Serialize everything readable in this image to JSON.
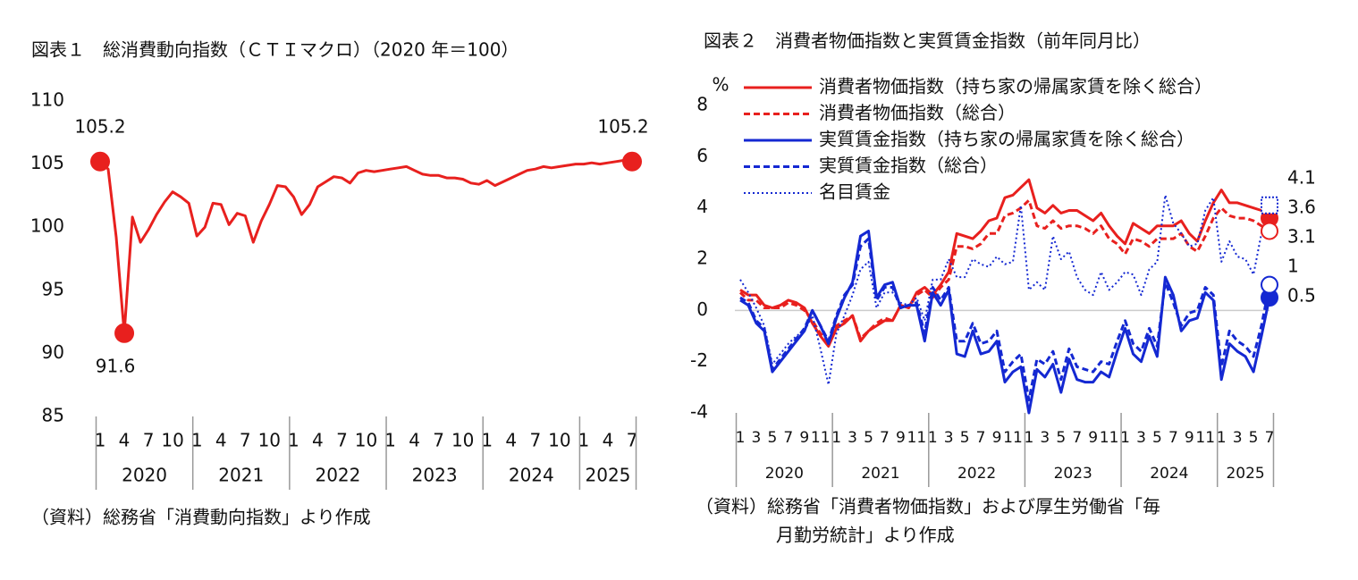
{
  "chart_data": [
    {
      "type": "line",
      "title": "図表１　総消費動向指数（ＣＴＩマクロ）（2020 年＝100）",
      "source": [
        "（資料）総務省「消費動向指数」より作成"
      ],
      "categories": [
        "1",
        null,
        null,
        "4",
        null,
        null,
        "7",
        null,
        null,
        "10",
        null,
        null,
        "1",
        null,
        null,
        "4",
        null,
        null,
        "7",
        null,
        null,
        "10",
        null,
        null,
        "1",
        null,
        null,
        "4",
        null,
        null,
        "7",
        null,
        null,
        "10",
        null,
        null,
        "1",
        null,
        null,
        "4",
        null,
        null,
        "7",
        null,
        null,
        "10",
        null,
        null,
        "1",
        null,
        null,
        "4",
        null,
        null,
        "7",
        null,
        null,
        "10",
        null,
        null,
        "1",
        null,
        null,
        "4",
        null,
        null,
        "7"
      ],
      "groups": [
        "2020",
        "2021",
        "2022",
        "2023",
        "2024",
        "2025"
      ],
      "series": [
        {
          "name": "総消費動向指数",
          "color": "#e8201e",
          "dash": "solid",
          "values": [
            105.2,
            104.6,
            99.2,
            91.6,
            100.8,
            98.8,
            99.8,
            101.0,
            102.0,
            102.8,
            102.4,
            101.9,
            99.3,
            100.0,
            101.9,
            101.8,
            100.2,
            101.1,
            100.9,
            98.8,
            100.5,
            101.8,
            103.3,
            103.2,
            102.4,
            101.0,
            101.8,
            103.2,
            103.6,
            104.0,
            103.9,
            103.5,
            104.3,
            104.5,
            104.4,
            104.5,
            104.6,
            104.7,
            104.8,
            104.5,
            104.2,
            104.1,
            104.1,
            103.9,
            103.9,
            103.8,
            103.5,
            103.4,
            103.7,
            103.3,
            103.6,
            103.9,
            104.2,
            104.5,
            104.6,
            104.8,
            104.7,
            104.8,
            104.9,
            105.0,
            105.0,
            105.1,
            105.0,
            105.1,
            105.2,
            105.3,
            105.2
          ]
        }
      ],
      "labeled_points": [
        0,
        3,
        66
      ],
      "ylim": [
        85,
        110
      ],
      "yticks": [
        85,
        90,
        95,
        100,
        105,
        110
      ],
      "grid": false,
      "legend": false
    },
    {
      "type": "line",
      "title": "図表２　消費者物価指数と実質賃金指数（前年同月比）",
      "source": [
        "（資料）総務省「消費者物価指数」および厚生労働省「毎",
        "月勤労統計」より作成"
      ],
      "ylabel": "%",
      "categories": [
        "1",
        null,
        "3",
        null,
        "5",
        null,
        "7",
        null,
        "9",
        null,
        "11",
        null,
        "1",
        null,
        "3",
        null,
        "5",
        null,
        "7",
        null,
        "9",
        null,
        "11",
        null,
        "1",
        null,
        "3",
        null,
        "5",
        null,
        "7",
        null,
        "9",
        null,
        "11",
        null,
        "1",
        null,
        "3",
        null,
        "5",
        null,
        "7",
        null,
        "9",
        null,
        "11",
        null,
        "1",
        null,
        "3",
        null,
        "5",
        null,
        "7",
        null,
        "9",
        null,
        "11",
        null,
        "1",
        null,
        "3",
        null,
        "5",
        null,
        "7"
      ],
      "groups": [
        "2020",
        "2021",
        "2022",
        "2023",
        "2024",
        "2025"
      ],
      "series": [
        {
          "name": "消費者物価指数（持ち家の帰属家賃を除く総合）",
          "color": "#e8201e",
          "dash": "solid",
          "end_marker": "filled",
          "values": [
            0.8,
            0.6,
            0.6,
            0.2,
            0.1,
            0.2,
            0.4,
            0.3,
            0.1,
            -0.5,
            -1.0,
            -1.4,
            -0.7,
            -0.5,
            -0.2,
            -1.2,
            -0.8,
            -0.6,
            -0.4,
            -0.4,
            0.2,
            0.1,
            0.7,
            0.9,
            0.6,
            1.0,
            1.5,
            3.0,
            2.9,
            2.8,
            3.1,
            3.5,
            3.6,
            4.4,
            4.5,
            4.8,
            5.1,
            4.0,
            3.8,
            4.1,
            3.8,
            3.9,
            3.9,
            3.7,
            3.5,
            3.8,
            3.3,
            2.9,
            2.6,
            3.4,
            3.2,
            3.0,
            3.3,
            3.3,
            3.3,
            3.5,
            3.0,
            2.7,
            3.5,
            4.2,
            4.7,
            4.2,
            4.2,
            4.1,
            4.0,
            3.9,
            3.6
          ]
        },
        {
          "name": "消費者物価指数（総合）",
          "color": "#e8201e",
          "dash": "dash",
          "end_marker": "hollow",
          "values": [
            0.7,
            0.4,
            0.4,
            0.1,
            0.1,
            0.1,
            0.3,
            0.2,
            0.0,
            -0.4,
            -0.9,
            -1.2,
            -0.6,
            -0.4,
            -0.2,
            -1.1,
            -0.8,
            -0.5,
            -0.3,
            -0.4,
            0.2,
            0.1,
            0.6,
            0.8,
            0.5,
            0.9,
            1.2,
            2.5,
            2.5,
            2.4,
            2.6,
            3.0,
            3.0,
            3.7,
            3.8,
            4.0,
            4.3,
            3.3,
            3.2,
            3.5,
            3.2,
            3.3,
            3.3,
            3.2,
            3.0,
            3.3,
            2.8,
            2.6,
            2.2,
            2.8,
            2.7,
            2.5,
            2.8,
            2.8,
            2.8,
            3.0,
            2.5,
            2.3,
            2.9,
            3.6,
            4.0,
            3.7,
            3.6,
            3.6,
            3.5,
            3.3,
            3.1
          ]
        },
        {
          "name": "実質賃金指数（持ち家の帰属家賃を除く総合）",
          "color": "#1428d2",
          "dash": "solid",
          "end_marker": "filled",
          "values": [
            0.4,
            0.2,
            -0.5,
            -0.8,
            -2.4,
            -2.0,
            -1.6,
            -1.2,
            -0.8,
            0.0,
            -0.6,
            -1.3,
            -0.3,
            0.5,
            1.1,
            2.9,
            3.1,
            0.5,
            1.0,
            1.1,
            0.1,
            0.2,
            0.2,
            -1.2,
            0.7,
            0.2,
            0.8,
            -1.7,
            -1.8,
            -0.8,
            -1.7,
            -1.6,
            -1.2,
            -2.8,
            -2.4,
            -2.2,
            -4.0,
            -2.3,
            -2.6,
            -2.1,
            -3.2,
            -1.9,
            -2.7,
            -2.8,
            -2.8,
            -2.4,
            -2.6,
            -1.6,
            -0.7,
            -1.7,
            -2.0,
            -1.0,
            -1.8,
            1.3,
            0.6,
            -0.8,
            -0.4,
            -0.3,
            0.7,
            0.4,
            -2.7,
            -1.3,
            -1.6,
            -1.8,
            -2.4,
            -1.0,
            0.5
          ]
        },
        {
          "name": "実質賃金指数（総合）",
          "color": "#1428d2",
          "dash": "dash",
          "end_marker": "hollow",
          "values": [
            0.5,
            0.3,
            -0.4,
            -0.7,
            -2.3,
            -1.9,
            -1.5,
            -1.1,
            -0.7,
            0.0,
            -0.6,
            -1.2,
            -0.2,
            0.6,
            1.0,
            2.5,
            2.8,
            0.4,
            0.9,
            0.9,
            0.1,
            0.2,
            0.3,
            -0.9,
            0.9,
            0.4,
            0.9,
            -1.2,
            -1.2,
            -0.5,
            -1.3,
            -1.2,
            -0.8,
            -2.4,
            -2.0,
            -1.7,
            -3.5,
            -1.9,
            -2.1,
            -1.6,
            -2.7,
            -1.5,
            -2.2,
            -2.3,
            -2.4,
            -2.0,
            -2.1,
            -1.2,
            -0.4,
            -1.3,
            -1.6,
            -0.7,
            -1.4,
            1.1,
            0.3,
            -0.6,
            -0.1,
            0.0,
            0.9,
            0.6,
            -2.2,
            -0.8,
            -1.2,
            -1.4,
            -1.8,
            -0.6,
            1.0
          ]
        },
        {
          "name": "名目賃金",
          "color": "#1428d2",
          "dash": "dot",
          "end_marker": "square",
          "values": [
            1.2,
            0.7,
            0.1,
            -0.6,
            -2.1,
            -1.7,
            -1.3,
            -1.0,
            -0.8,
            -0.2,
            -1.5,
            -2.9,
            -0.9,
            -0.2,
            0.6,
            1.6,
            1.9,
            0.1,
            0.7,
            0.7,
            0.3,
            0.2,
            0.5,
            -0.4,
            1.2,
            1.2,
            2.0,
            1.3,
            1.3,
            2.0,
            1.8,
            1.7,
            2.1,
            1.8,
            1.9,
            4.1,
            0.8,
            1.1,
            0.8,
            2.9,
            2.0,
            2.3,
            1.3,
            0.8,
            0.6,
            1.5,
            0.8,
            1.1,
            1.5,
            1.4,
            0.6,
            1.6,
            1.9,
            4.5,
            3.4,
            3.0,
            2.5,
            2.6,
            3.9,
            4.4,
            1.9,
            2.7,
            2.1,
            2.0,
            1.4,
            3.0,
            4.1
          ]
        }
      ],
      "labeled_points": [
        66
      ],
      "ylim": [
        -4,
        8
      ],
      "yticks": [
        -4,
        -2,
        0,
        2,
        4,
        6,
        8
      ],
      "grid": false,
      "zero_line": true,
      "legend": "upper left"
    }
  ]
}
